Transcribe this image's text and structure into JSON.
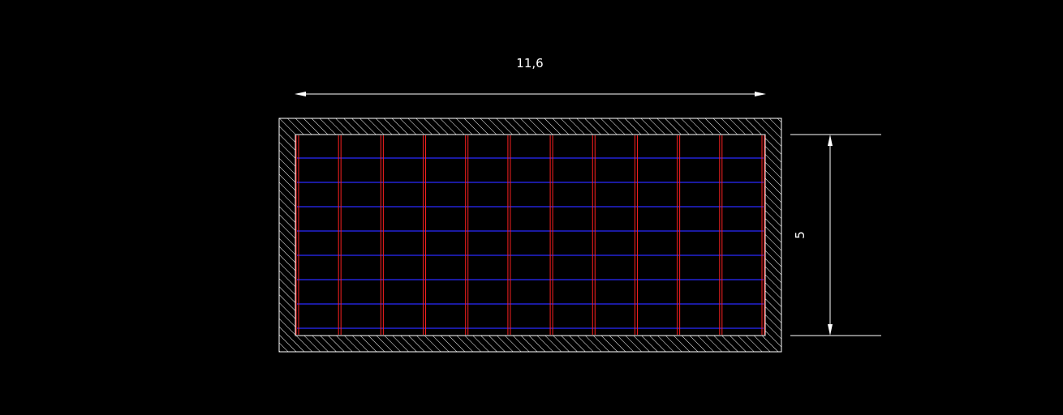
{
  "dimensions": {
    "width_label": "11,6",
    "height_label": "5"
  },
  "colors": {
    "background": "#000000",
    "outline": "#ffffff",
    "hatch": "#ffffff",
    "longitudinal_bars": "#ff2020",
    "transverse_bars": "#2a2aff",
    "dimension": "#ffffff"
  },
  "reinforcement": {
    "vertical_bar_pairs": 12,
    "horizontal_bars": 8
  }
}
